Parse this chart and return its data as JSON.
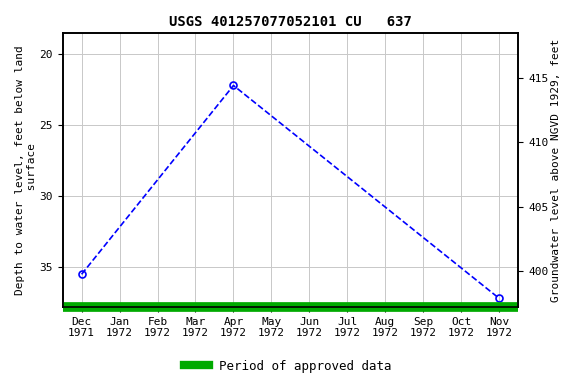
{
  "title": "USGS 401257077052101 CU   637",
  "xlabel_ticks": [
    "Dec\n1971",
    "Jan\n1972",
    "Feb\n1972",
    "Mar\n1972",
    "Apr\n1972",
    "May\n1972",
    "Jun\n1972",
    "Jul\n1972",
    "Aug\n1972",
    "Sep\n1972",
    "Oct\n1972",
    "Nov\n1972"
  ],
  "x_values": [
    0,
    1,
    2,
    3,
    4,
    5,
    6,
    7,
    8,
    9,
    10,
    11
  ],
  "x_data": [
    0,
    4,
    11
  ],
  "y_data": [
    35.5,
    22.2,
    37.2
  ],
  "ylabel_left": "Depth to water level, feet below land\n surface",
  "ylabel_right": "Groundwater level above NGVD 1929, feet",
  "ylim_left": [
    37.8,
    18.5
  ],
  "ylim_right": [
    397.2,
    418.5
  ],
  "y_ticks_left": [
    20,
    25,
    30,
    35
  ],
  "y_ticks_right": [
    415,
    410,
    405,
    400
  ],
  "data_color": "#0000ff",
  "grid_color": "#c8c8c8",
  "legend_color": "#00aa00",
  "legend_label": "Period of approved data",
  "bg_color": "#ffffff",
  "plot_bg": "#ffffff",
  "marker_style": "o",
  "line_style": "--",
  "title_fontsize": 10,
  "axis_label_fontsize": 8,
  "tick_fontsize": 8
}
